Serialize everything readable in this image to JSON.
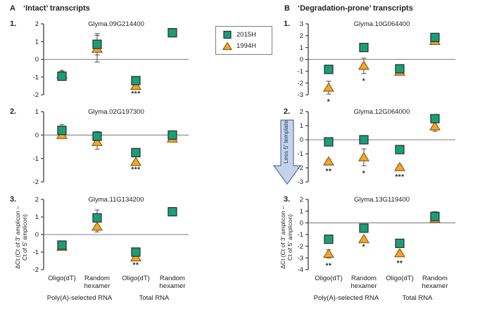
{
  "figure": {
    "panels": [
      {
        "letter": "A",
        "title": "‘Intact’ transcripts"
      },
      {
        "letter": "B",
        "title": "‘Degradation-prone’ transcripts"
      }
    ],
    "legend": {
      "items": [
        {
          "label": "2015H",
          "marker": "square",
          "color": "#1A9E77"
        },
        {
          "label": "1994H",
          "marker": "triangle",
          "color": "#F4A62A"
        }
      ]
    },
    "annotation_arrow": {
      "text": "Less 5' template"
    },
    "y_axis_label": {
      "line1": "ΔCt (Ct of 3' amplicon –",
      "line2": "Ct of 5' amplicon)"
    }
  },
  "colors": {
    "series_2015H": "#1A9E77",
    "series_2015H_border": "#2B2B2B",
    "series_1994H": "#F4A62A",
    "series_1994H_border": "#8F5C14",
    "error_bar": "#4D4D4D",
    "axis": "#3F3F3F",
    "zero_line": "#808080",
    "text": "#222222",
    "arrow_fill": "#C5D3EA",
    "arrow_border": "#5B6E96",
    "arrow_text": "#17375E"
  },
  "chart_data": [
    {
      "type": "scatter",
      "panel": "A",
      "number": "1.",
      "title": "Glyma.09G214400",
      "ylim": [
        -2,
        2
      ],
      "yticks": [
        2,
        1,
        0,
        -1,
        -2
      ],
      "categories": [
        "Oligo(dT)",
        "Random hexamer",
        "Oligo(dT)",
        "Random hexamer"
      ],
      "group_labels": [
        "Poly(A)-selected RNA",
        "Total RNA"
      ],
      "series": [
        {
          "name": "2015H",
          "marker": "square",
          "values": [
            -0.95,
            0.85,
            -1.2,
            1.5
          ],
          "err": [
            0.15,
            0.6,
            0,
            0.15
          ]
        },
        {
          "name": "1994H",
          "marker": "triangle",
          "values": [
            -0.85,
            0.6,
            -1.5,
            null
          ],
          "err": [
            0.2,
            0.75,
            0,
            0
          ]
        }
      ],
      "significance": [
        "",
        "",
        "***",
        ""
      ]
    },
    {
      "type": "scatter",
      "panel": "A",
      "number": "2.",
      "title": "Glyma.02G197300",
      "ylim": [
        -2,
        1
      ],
      "yticks": [
        1,
        0,
        -1,
        -2
      ],
      "categories": [
        "Oligo(dT)",
        "Random hexamer",
        "Oligo(dT)",
        "Random hexamer"
      ],
      "group_labels": [
        "Poly(A)-selected RNA",
        "Total RNA"
      ],
      "series": [
        {
          "name": "2015H",
          "marker": "square",
          "values": [
            0.2,
            -0.05,
            -0.75,
            0.0
          ],
          "err": [
            0.25,
            0.2,
            0,
            0.1
          ]
        },
        {
          "name": "1994H",
          "marker": "triangle",
          "values": [
            0.0,
            -0.3,
            -1.15,
            -0.15
          ],
          "err": [
            0.1,
            0.3,
            0,
            0.1
          ]
        }
      ],
      "significance": [
        "",
        "",
        "***",
        ""
      ]
    },
    {
      "type": "scatter",
      "panel": "A",
      "number": "3.",
      "title": "Glyma.11G134200",
      "ylim": [
        -2,
        2
      ],
      "yticks": [
        2,
        1,
        0,
        -1,
        -2
      ],
      "categories": [
        "Oligo(dT)",
        "Random hexamer",
        "Oligo(dT)",
        "Random hexamer"
      ],
      "group_labels": [
        "Poly(A)-selected RNA",
        "Total RNA"
      ],
      "series": [
        {
          "name": "2015H",
          "marker": "square",
          "values": [
            -0.6,
            0.95,
            -1.0,
            1.3
          ],
          "err": [
            0.15,
            0.45,
            0,
            0.15
          ]
        },
        {
          "name": "1994H",
          "marker": "triangle",
          "values": [
            -0.7,
            0.45,
            -1.3,
            null
          ],
          "err": [
            0,
            0.3,
            0,
            0
          ]
        }
      ],
      "significance": [
        "",
        "",
        "**",
        ""
      ]
    },
    {
      "type": "scatter",
      "panel": "B",
      "number": "1.",
      "title": "Glyma.10G064400",
      "ylim": [
        -3,
        3
      ],
      "yticks": [
        3,
        2,
        1,
        0,
        -1,
        -2,
        -3
      ],
      "categories": [
        "Oligo(dT)",
        "Random hexamer",
        "Oligo(dT)",
        "Random hexamer"
      ],
      "group_labels": [
        "Poly(A)-selected RNA",
        "Total RNA"
      ],
      "series": [
        {
          "name": "2015H",
          "marker": "square",
          "values": [
            -0.85,
            1.0,
            -0.8,
            1.85
          ],
          "err": [
            0,
            0,
            0.2,
            0.35
          ]
        },
        {
          "name": "1994H",
          "marker": "triangle",
          "values": [
            -2.4,
            -0.55,
            -1.05,
            1.55
          ],
          "err": [
            0.55,
            0.65,
            0,
            0
          ]
        }
      ],
      "significance": [
        "*",
        "*",
        "",
        ""
      ]
    },
    {
      "type": "scatter",
      "panel": "B",
      "number": "2.",
      "title": "Glyma.12G064000",
      "ylim": [
        -3,
        2
      ],
      "yticks": [
        2,
        1,
        0,
        -1,
        -2,
        -3
      ],
      "categories": [
        "Oligo(dT)",
        "Random hexamer",
        "Oligo(dT)",
        "Random hexamer"
      ],
      "group_labels": [
        "Poly(A)-selected RNA",
        "Total RNA"
      ],
      "series": [
        {
          "name": "2015H",
          "marker": "square",
          "values": [
            -0.15,
            0.0,
            -0.7,
            1.5
          ],
          "err": [
            0.2,
            0.15,
            0,
            0.15
          ]
        },
        {
          "name": "1994H",
          "marker": "triangle",
          "values": [
            -1.55,
            -1.25,
            -1.95,
            0.95
          ],
          "err": [
            0.15,
            0.6,
            0.15,
            0.35
          ]
        }
      ],
      "significance": [
        "**",
        "*",
        "***",
        ""
      ]
    },
    {
      "type": "scatter",
      "panel": "B",
      "number": "3.",
      "title": "Glyma.13G119400",
      "ylim": [
        -4,
        2
      ],
      "yticks": [
        2,
        1,
        0,
        -1,
        -2,
        -3,
        -4
      ],
      "categories": [
        "Oligo(dT)",
        "Random hexamer",
        "Oligo(dT)",
        "Random hexamer"
      ],
      "group_labels": [
        "Poly(A)-selected RNA",
        "Total RNA"
      ],
      "series": [
        {
          "name": "2015H",
          "marker": "square",
          "values": [
            -1.4,
            -0.45,
            -1.75,
            0.55
          ],
          "err": [
            0,
            0.35,
            0,
            0.4
          ]
        },
        {
          "name": "1994H",
          "marker": "triangle",
          "values": [
            -2.65,
            -1.4,
            -2.6,
            0.35
          ],
          "err": [
            0.35,
            0,
            0.2,
            0
          ]
        }
      ],
      "significance": [
        "**",
        "*",
        "**",
        ""
      ]
    }
  ]
}
